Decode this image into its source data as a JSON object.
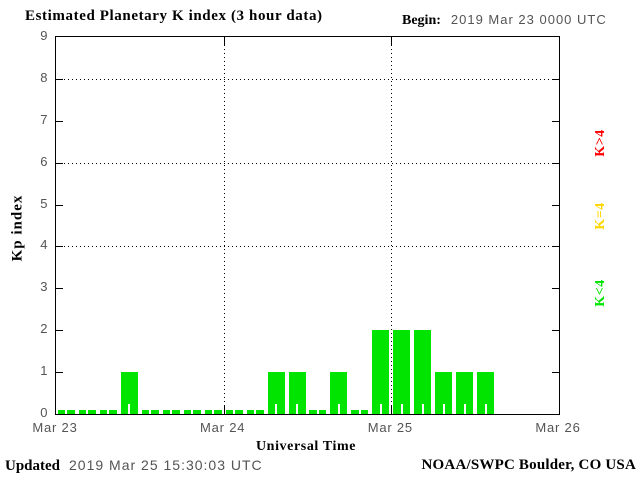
{
  "header": {
    "title": "Estimated Planetary K index (3 hour data)",
    "begin_label": "Begin:",
    "begin_value": "2019 Mar 23 0000 UTC"
  },
  "footer": {
    "updated_label": "Updated",
    "updated_value": "2019 Mar 25 15:30:03 UTC",
    "source": "NOAA/SWPC Boulder, CO USA"
  },
  "chart_data": {
    "type": "bar",
    "title": "Estimated Planetary K index (3 hour data)",
    "xlabel": "Universal Time",
    "ylabel": "Kp index",
    "ylim": [
      0,
      9
    ],
    "y_ticks": [
      0,
      1,
      2,
      3,
      4,
      5,
      6,
      7,
      8,
      9
    ],
    "y_gridlines": [
      4,
      6,
      8
    ],
    "x_tick_labels": [
      "Mar 23",
      "Mar 24",
      "Mar 25",
      "Mar 26"
    ],
    "n_days": 3,
    "bars_per_day": 8,
    "bar_interval_hours": 3,
    "begin": "2019 Mar 23 0000 UTC",
    "values": [
      0,
      0,
      0,
      1,
      0,
      0,
      0,
      0,
      0,
      0,
      1,
      1,
      0,
      1,
      0,
      2,
      2,
      2,
      1,
      1,
      1
    ],
    "colors": {
      "k_lt_4": "#00e400",
      "k_eq_4": "#ffd700",
      "k_gt_4": "#ff0000",
      "grid": "#000000",
      "text_gray": "#545454"
    },
    "legend": [
      {
        "label": "K>4",
        "color": "#ff0000"
      },
      {
        "label": "K=4",
        "color": "#ffd700"
      },
      {
        "label": "K<4",
        "color": "#00e400"
      }
    ],
    "legend_position": "right-outside-rotated",
    "grid": "dotted"
  }
}
